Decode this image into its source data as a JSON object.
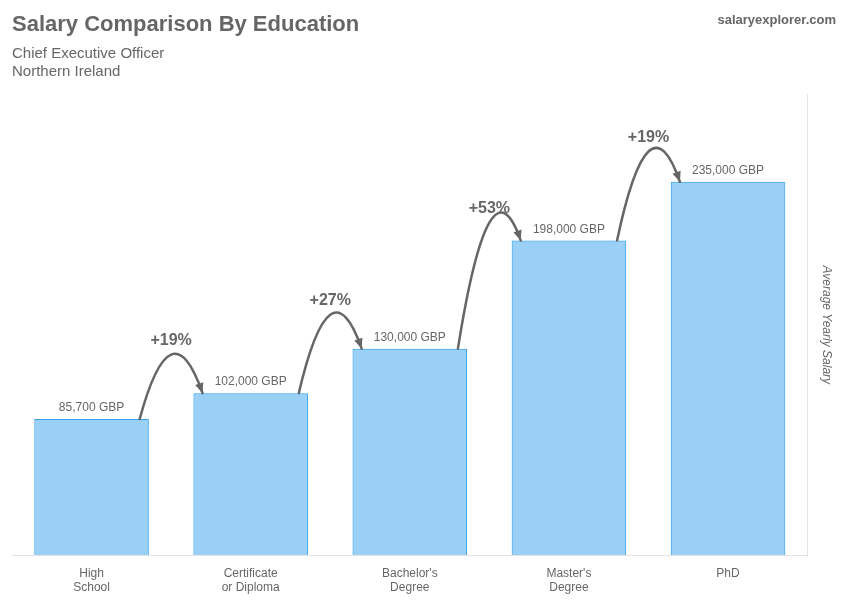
{
  "chart_data": {
    "type": "bar",
    "title": "Salary Comparison By Education",
    "subtitle": [
      "Chief Executive Officer",
      "Northern Ireland"
    ],
    "ylabel": "Average Yearly Salary",
    "categories": [
      "High\nSchool",
      "Certificate\nor Diploma",
      "Bachelor's\nDegree",
      "Master's\nDegree",
      "PhD"
    ],
    "values": [
      85700,
      102000,
      130000,
      198000,
      235000
    ],
    "value_labels": [
      "85,700 GBP",
      "102,000 GBP",
      "130,000 GBP",
      "198,000 GBP",
      "235,000 GBP"
    ],
    "data_labels": true,
    "ylim": [
      0,
      290000
    ],
    "grid": false,
    "tick_labels": "x",
    "annotations": [
      {
        "text": "+19%",
        "from": "High\nSchool",
        "to": "Certificate\nor Diploma"
      },
      {
        "text": "+27%",
        "from": "Certificate\nor Diploma",
        "to": "Bachelor's\nDegree"
      },
      {
        "text": "+53%",
        "from": "Bachelor's\nDegree",
        "to": "Master's\nDegree"
      },
      {
        "text": "+19%",
        "from": "Master's\nDegree",
        "to": "PhD"
      },
      {
        "text": "salaryexplorer.com"
      }
    ]
  }
}
